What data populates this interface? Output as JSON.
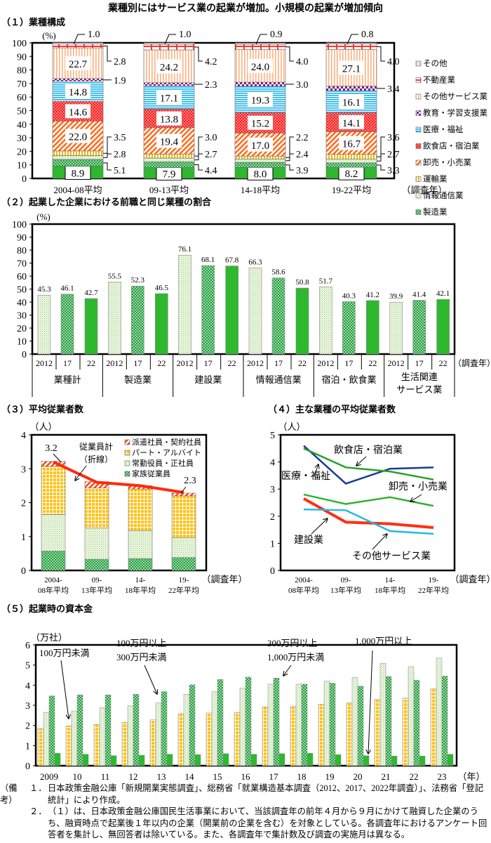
{
  "title": "業種別にはサービス業の起業が増加。小規模の起業が増加傾向",
  "chart_data": [
    {
      "type": "stacked_bar",
      "title": "（１）業種構成",
      "ylabel": "(%)",
      "xlabel": "（調査年）",
      "ylim": [
        0,
        100
      ],
      "yticks": [
        "0",
        "10",
        "20",
        "30",
        "40",
        "50",
        "60",
        "70",
        "80",
        "90",
        "100"
      ],
      "grid": false,
      "legend": "right",
      "categories": [
        "2004-08平均",
        "09-13平均",
        "14-18平均",
        "19-22平均"
      ],
      "series": [
        {
          "name": "建設業",
          "values": [
            "8.9",
            "7.9",
            "8.0",
            "8.2"
          ],
          "color": "#2eb82e"
        },
        {
          "name": "製造業",
          "values": [
            "5.1",
            "4.4",
            "3.9",
            "3.3"
          ],
          "color": "#1f9e3a"
        },
        {
          "name": "情報通信業",
          "values": [
            "2.8",
            "2.7",
            "2.4",
            "2.7"
          ],
          "color": "#b7dca0"
        },
        {
          "name": "運輸業",
          "values": [
            "3.5",
            "3.0",
            "2.2",
            "3.6"
          ],
          "color": "#f5b800"
        },
        {
          "name": "卸売・小売業",
          "values": [
            "22.0",
            "19.4",
            "17.0",
            "16.7"
          ],
          "color": "#ff6a1a"
        },
        {
          "name": "飲食店・宿泊業",
          "values": [
            "14.6",
            "13.8",
            "15.2",
            "14.1"
          ],
          "color": "#ff1a1a"
        },
        {
          "name": "医療・福祉",
          "values": [
            "14.8",
            "17.1",
            "19.3",
            "16.1"
          ],
          "color": "#1ab0e8"
        },
        {
          "name": "教育・学習支援業",
          "values": [
            "1.9",
            "2.3",
            "3.0",
            "3.4"
          ],
          "color": "#7a1a8a"
        },
        {
          "name": "その他サービス業",
          "values": [
            "22.7",
            "24.2",
            "24.0",
            "27.1"
          ],
          "color": "#ffb080"
        },
        {
          "name": "不動産業",
          "values": [
            "2.8",
            "4.2",
            "4.0",
            "4.0"
          ],
          "color": "#ff3333"
        },
        {
          "name": "その他",
          "values": [
            "1.0",
            "1.0",
            "0.9",
            "0.8"
          ],
          "color": "#d0d0d0"
        }
      ]
    },
    {
      "type": "bar",
      "title": "（２）起業した企業における前職と同じ業種の割合",
      "ylabel": "(%)",
      "xlabel": "（調査年）",
      "ylim": [
        0,
        100
      ],
      "yticks": [
        "0",
        "10",
        "20",
        "30",
        "40",
        "50",
        "60",
        "70",
        "80",
        "90",
        "100"
      ],
      "grid": false,
      "years": [
        "2012",
        "17",
        "22"
      ],
      "groups": [
        {
          "name_lines": [
            "業種計"
          ],
          "values": [
            "45.3",
            "46.1",
            "42.7"
          ]
        },
        {
          "name_lines": [
            "製造業"
          ],
          "values": [
            "55.5",
            "52.3",
            "46.5"
          ]
        },
        {
          "name_lines": [
            "建設業"
          ],
          "values": [
            "76.1",
            "68.1",
            "67.8"
          ]
        },
        {
          "name_lines": [
            "情報通信業"
          ],
          "values": [
            "66.3",
            "58.6",
            "50.8"
          ]
        },
        {
          "name_lines": [
            "宿泊・飲食業"
          ],
          "values": [
            "51.7",
            "40.3",
            "41.2"
          ]
        },
        {
          "name_lines": [
            "生活関連",
            "サービス業"
          ],
          "values": [
            "39.9",
            "41.4",
            "42.1"
          ]
        }
      ]
    },
    {
      "type": "stacked_bar",
      "title": "（３）平均従業者数",
      "ylabel": "（人）",
      "xlabel": "（調査年）",
      "ylim": [
        0,
        4
      ],
      "yticks": [
        "0",
        "1",
        "2",
        "3",
        "4"
      ],
      "legend": "top-right",
      "categories": [
        [
          "2004-",
          "08年平均"
        ],
        [
          "09-",
          "13年平均"
        ],
        [
          "14-",
          "18年平均"
        ],
        [
          "19-",
          "22年平均"
        ]
      ],
      "series": [
        {
          "name": "家族従業員",
          "values": [
            0.57,
            0.33,
            0.35,
            0.38
          ]
        },
        {
          "name": "常勤役員・正社員",
          "values": [
            1.08,
            0.92,
            0.83,
            0.59
          ]
        },
        {
          "name": "パート・アルバイト",
          "values": [
            1.42,
            1.18,
            1.22,
            1.23
          ]
        },
        {
          "name": "派遣社員・契約社員",
          "values": [
            0.15,
            0.19,
            0.1,
            0.08
          ]
        }
      ],
      "line": {
        "name": "従業員計",
        "note": "（折線）",
        "values": [
          3.2,
          2.6,
          2.5,
          2.3
        ],
        "color": "#ff2a10"
      },
      "labels": {
        "first": "3.2",
        "last": "2.3"
      }
    },
    {
      "type": "line",
      "title": "（４）主な業種の平均従業者数",
      "ylabel": "（人）",
      "xlabel": "（調査年）",
      "ylim": [
        0,
        5
      ],
      "yticks": [
        "0",
        "1",
        "2",
        "3",
        "4",
        "5"
      ],
      "categories": [
        [
          "2004-",
          "08年平均"
        ],
        [
          "09-",
          "13年平均"
        ],
        [
          "14-",
          "18年平均"
        ],
        [
          "19-",
          "22年平均"
        ]
      ],
      "series": [
        {
          "name": "医療・福祉",
          "values": [
            4.6,
            3.2,
            3.75,
            3.8
          ],
          "color": "#1a3a9a"
        },
        {
          "name": "飲食店・宿泊業",
          "values": [
            4.5,
            3.8,
            3.65,
            3.35
          ],
          "color": "#2aa02a"
        },
        {
          "name": "卸売・小売業",
          "values": [
            2.8,
            2.45,
            2.7,
            2.38
          ],
          "color": "#33b033"
        },
        {
          "name": "建設業",
          "values": [
            2.65,
            1.78,
            1.72,
            1.58
          ],
          "color": "#ff3010"
        },
        {
          "name": "その他サービス業",
          "values": [
            2.25,
            2.22,
            1.45,
            1.35
          ],
          "color": "#22b8ee"
        }
      ]
    },
    {
      "type": "bar",
      "title": "（５）起業時の資本金",
      "ylabel": "（万社）",
      "xlabel": "（年）",
      "ylim": [
        0,
        6
      ],
      "yticks": [
        "0",
        "1",
        "2",
        "3",
        "4",
        "5",
        "6"
      ],
      "categories": [
        "2009",
        "10",
        "11",
        "12",
        "13",
        "14",
        "15",
        "16",
        "17",
        "18",
        "19",
        "20",
        "21",
        "22",
        "23"
      ],
      "series": [
        {
          "name": "100万円未満",
          "label_lines": [
            "100万円未満"
          ],
          "values": [
            1.85,
            1.98,
            2.05,
            2.15,
            2.28,
            2.58,
            2.62,
            2.65,
            2.92,
            2.95,
            3.05,
            3.12,
            3.3,
            3.35,
            3.82
          ]
        },
        {
          "name": "100万円以上300万円未満",
          "label_lines": [
            "100万円以上",
            "300万円未満"
          ],
          "values": [
            2.65,
            2.72,
            2.88,
            2.97,
            3.12,
            3.55,
            3.68,
            3.85,
            4.05,
            4.05,
            4.2,
            4.38,
            5.08,
            4.92,
            5.35
          ]
        },
        {
          "name": "300万円以上1,000万円未満",
          "label_lines": [
            "300万円以上",
            "1,000万円未満"
          ],
          "values": [
            3.47,
            3.52,
            3.52,
            3.55,
            3.68,
            4.02,
            4.28,
            4.4,
            4.35,
            4.05,
            4.1,
            3.95,
            4.43,
            4.25,
            4.45
          ]
        },
        {
          "name": "1,000万円以上",
          "label_lines": [
            "1,000万円以上"
          ],
          "values": [
            0.62,
            0.57,
            0.5,
            0.52,
            0.57,
            0.55,
            0.6,
            0.57,
            0.6,
            0.62,
            0.55,
            0.5,
            0.48,
            0.48,
            0.57
          ]
        }
      ]
    }
  ],
  "notes": {
    "label": "（備考）",
    "items": [
      {
        "num": "１．",
        "text": "日本政策金融公庫「新規開業実態調査」、総務省「就業構造基本調査（2012、2017、2022年調査）」、法務省「登記統計」により作成。"
      },
      {
        "num": "２．",
        "text": "（１）は、日本政策金融公庫国民生活事業において、当該調査年の前年４月から９月にかけて融資した企業のうち、融資時点で起業後１年以内の企業（開業前の企業を含む）を対象としている。各調査年におけるアンケート回答者を集計し、無回答者は除いている。また、各調査年で集計数及び調査の実施月は異なる。"
      }
    ]
  }
}
